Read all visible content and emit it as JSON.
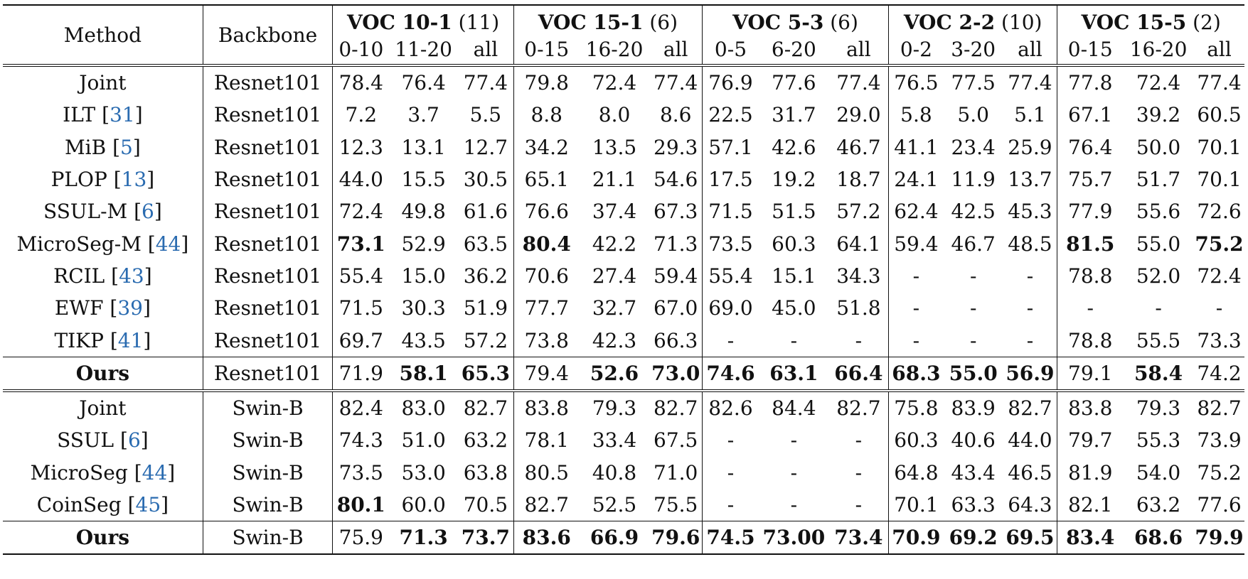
{
  "header": {
    "method": "Method",
    "backbone": "Backbone",
    "groups": [
      {
        "title": "VOC 10-1",
        "n": " (11)",
        "cols": [
          "0-10",
          "11-20",
          "all"
        ]
      },
      {
        "title": "VOC 15-1",
        "n": " (6)",
        "cols": [
          "0-15",
          "16-20",
          "all"
        ]
      },
      {
        "title": "VOC 5-3",
        "n": " (6)",
        "cols": [
          "0-5",
          "6-20",
          "all"
        ]
      },
      {
        "title": "VOC 2-2",
        "n": " (10)",
        "cols": [
          "0-2",
          "3-20",
          "all"
        ]
      },
      {
        "title": "VOC 15-5",
        "n": " (2)",
        "cols": [
          "0-15",
          "16-20",
          "all"
        ]
      }
    ]
  },
  "sections": [
    {
      "rows": [
        {
          "name": "Joint",
          "cite": "",
          "backbone": "Resnet101",
          "values": [
            "78.4",
            "76.4",
            "77.4",
            "79.8",
            "72.4",
            "77.4",
            "76.9",
            "77.6",
            "77.4",
            "76.5",
            "77.5",
            "77.4",
            "77.8",
            "72.4",
            "77.4"
          ],
          "bold": []
        },
        {
          "name": "ILT ",
          "cite": "31",
          "backbone": "Resnet101",
          "values": [
            "7.2",
            "3.7",
            "5.5",
            "8.8",
            "8.0",
            "8.6",
            "22.5",
            "31.7",
            "29.0",
            "5.8",
            "5.0",
            "5.1",
            "67.1",
            "39.2",
            "60.5"
          ],
          "bold": []
        },
        {
          "name": "MiB ",
          "cite": "5",
          "backbone": "Resnet101",
          "values": [
            "12.3",
            "13.1",
            "12.7",
            "34.2",
            "13.5",
            "29.3",
            "57.1",
            "42.6",
            "46.7",
            "41.1",
            "23.4",
            "25.9",
            "76.4",
            "50.0",
            "70.1"
          ],
          "bold": []
        },
        {
          "name": "PLOP ",
          "cite": "13",
          "backbone": "Resnet101",
          "values": [
            "44.0",
            "15.5",
            "30.5",
            "65.1",
            "21.1",
            "54.6",
            "17.5",
            "19.2",
            "18.7",
            "24.1",
            "11.9",
            "13.7",
            "75.7",
            "51.7",
            "70.1"
          ],
          "bold": []
        },
        {
          "name": "SSUL-M ",
          "cite": "6",
          "backbone": "Resnet101",
          "values": [
            "72.4",
            "49.8",
            "61.6",
            "76.6",
            "37.4",
            "67.3",
            "71.5",
            "51.5",
            "57.2",
            "62.4",
            "42.5",
            "45.3",
            "77.9",
            "55.6",
            "72.6"
          ],
          "bold": []
        },
        {
          "name": "MicroSeg-M ",
          "cite": "44",
          "backbone": "Resnet101",
          "values": [
            "73.1",
            "52.9",
            "63.5",
            "80.4",
            "42.2",
            "71.3",
            "73.5",
            "60.3",
            "64.1",
            "59.4",
            "46.7",
            "48.5",
            "81.5",
            "55.0",
            "75.2"
          ],
          "bold": [
            0,
            3,
            12,
            14
          ]
        },
        {
          "name": "RCIL ",
          "cite": "43",
          "backbone": "Resnet101",
          "values": [
            "55.4",
            "15.0",
            "36.2",
            "70.6",
            "27.4",
            "59.4",
            "55.4",
            "15.1",
            "34.3",
            "-",
            "-",
            "-",
            "78.8",
            "52.0",
            "72.4"
          ],
          "bold": []
        },
        {
          "name": "EWF ",
          "cite": "39",
          "backbone": "Resnet101",
          "values": [
            "71.5",
            "30.3",
            "51.9",
            "77.7",
            "32.7",
            "67.0",
            "69.0",
            "45.0",
            "51.8",
            "-",
            "-",
            "-",
            "-",
            "-",
            "-"
          ],
          "bold": []
        },
        {
          "name": "TIKP ",
          "cite": "41",
          "backbone": "Resnet101",
          "values": [
            "69.7",
            "43.5",
            "57.2",
            "73.8",
            "42.3",
            "66.3",
            "-",
            "-",
            "-",
            "-",
            "-",
            "-",
            "78.8",
            "55.5",
            "73.3"
          ],
          "bold": []
        }
      ],
      "ours": {
        "name": "Ours",
        "backbone": "Resnet101",
        "values": [
          "71.9",
          "58.1",
          "65.3",
          "79.4",
          "52.6",
          "73.0",
          "74.6",
          "63.1",
          "66.4",
          "68.3",
          "55.0",
          "56.9",
          "79.1",
          "58.4",
          "74.2"
        ],
        "bold": [
          1,
          2,
          4,
          5,
          6,
          7,
          8,
          9,
          10,
          11,
          13
        ]
      }
    },
    {
      "rows": [
        {
          "name": "Joint",
          "cite": "",
          "backbone": "Swin-B",
          "values": [
            "82.4",
            "83.0",
            "82.7",
            "83.8",
            "79.3",
            "82.7",
            "82.6",
            "84.4",
            "82.7",
            "75.8",
            "83.9",
            "82.7",
            "83.8",
            "79.3",
            "82.7"
          ],
          "bold": []
        },
        {
          "name": "SSUL ",
          "cite": "6",
          "backbone": "Swin-B",
          "values": [
            "74.3",
            "51.0",
            "63.2",
            "78.1",
            "33.4",
            "67.5",
            "-",
            "-",
            "-",
            "60.3",
            "40.6",
            "44.0",
            "79.7",
            "55.3",
            "73.9"
          ],
          "bold": []
        },
        {
          "name": "MicroSeg ",
          "cite": "44",
          "backbone": "Swin-B",
          "values": [
            "73.5",
            "53.0",
            "63.8",
            "80.5",
            "40.8",
            "71.0",
            "-",
            "-",
            "-",
            "64.8",
            "43.4",
            "46.5",
            "81.9",
            "54.0",
            "75.2"
          ],
          "bold": []
        },
        {
          "name": "CoinSeg ",
          "cite": "45",
          "backbone": "Swin-B",
          "values": [
            "80.1",
            "60.0",
            "70.5",
            "82.7",
            "52.5",
            "75.5",
            "-",
            "-",
            "-",
            "70.1",
            "63.3",
            "64.3",
            "82.1",
            "63.2",
            "77.6"
          ],
          "bold": [
            0
          ]
        }
      ],
      "ours": {
        "name": "Ours",
        "backbone": "Swin-B",
        "values": [
          "75.9",
          "71.3",
          "73.7",
          "83.6",
          "66.9",
          "79.6",
          "74.5",
          "73.00",
          "73.4",
          "70.9",
          "69.2",
          "69.5",
          "83.4",
          "68.6",
          "79.9"
        ],
        "bold": [
          1,
          2,
          3,
          4,
          5,
          6,
          7,
          8,
          9,
          10,
          11,
          12,
          13,
          14
        ]
      }
    }
  ],
  "colors": {
    "citation": "#2a6bb0",
    "text": "#111111"
  }
}
